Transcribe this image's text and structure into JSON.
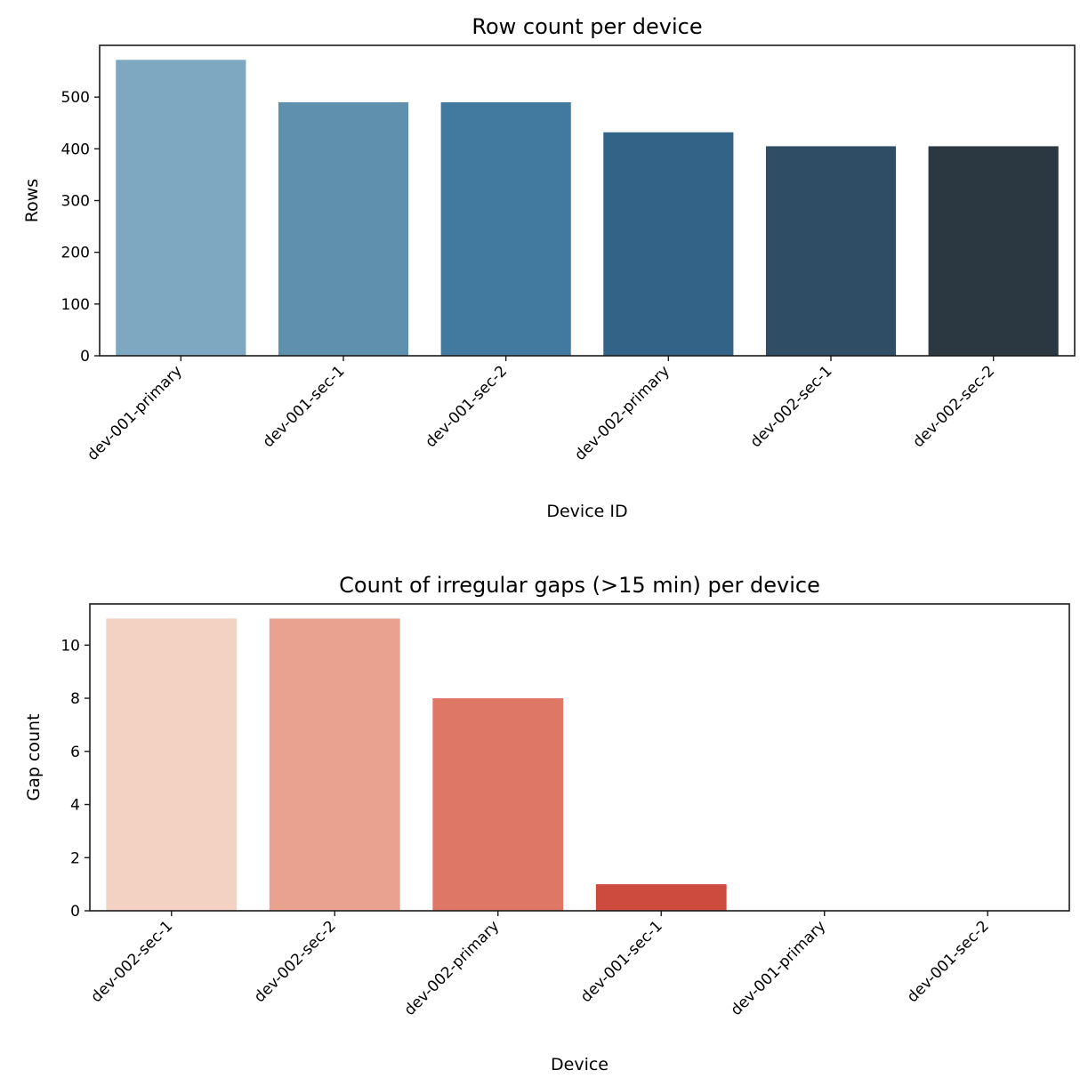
{
  "chart_data": [
    {
      "type": "bar",
      "title": "Row count per device",
      "xlabel": "Device ID",
      "ylabel": "Rows",
      "categories": [
        "dev-001-primary",
        "dev-001-sec-1",
        "dev-001-sec-2",
        "dev-002-primary",
        "dev-002-sec-1",
        "dev-002-sec-2"
      ],
      "values": [
        572,
        490,
        490,
        432,
        405,
        405
      ],
      "colors": [
        "#7ea7c1",
        "#5f90ae",
        "#427a9f",
        "#336386",
        "#2f4d64",
        "#2c3841"
      ],
      "ylim": [
        0,
        600
      ],
      "yticks": [
        "0",
        "100",
        "200",
        "300",
        "400",
        "500"
      ],
      "grid": false,
      "legend": "none"
    },
    {
      "type": "bar",
      "title": "Count of irregular gaps (>15 min) per device",
      "xlabel": "Device",
      "ylabel": "Gap count",
      "categories": [
        "dev-002-sec-1",
        "dev-002-sec-2",
        "dev-002-primary",
        "dev-001-sec-1",
        "dev-001-primary",
        "dev-001-sec-2"
      ],
      "values": [
        11,
        11,
        8,
        1,
        0,
        0
      ],
      "colors": [
        "#f3d1c3",
        "#e8a28f",
        "#de7765",
        "#cd4a3e",
        "#b32d2e",
        "#8f1d22"
      ],
      "ylim": [
        0,
        11.55
      ],
      "yticks": [
        "0",
        "2",
        "4",
        "6",
        "8",
        "10"
      ],
      "grid": false,
      "legend": "none"
    }
  ]
}
